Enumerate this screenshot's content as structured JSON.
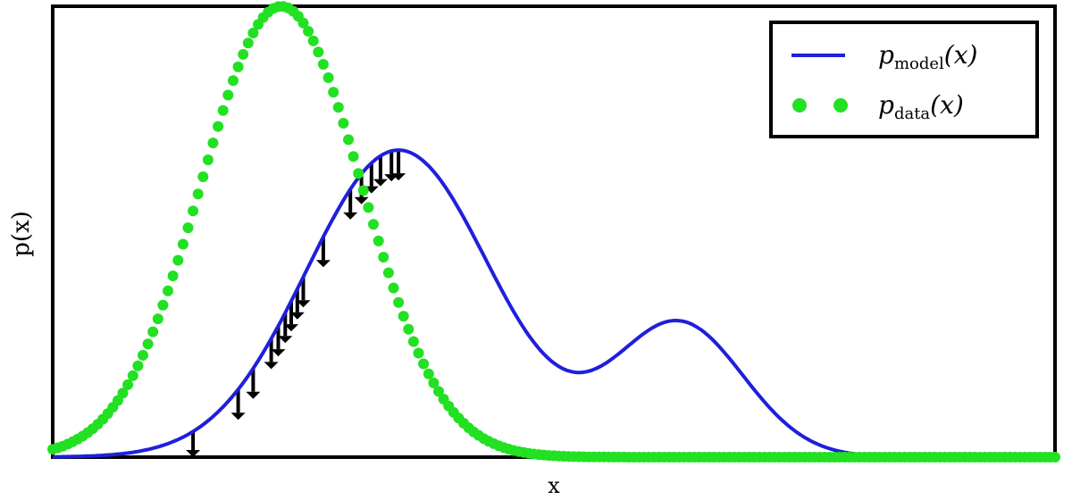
{
  "chart_data": {
    "type": "line",
    "title": "",
    "xlabel": "x",
    "ylabel": "p(x)",
    "xlim": [
      0,
      1
    ],
    "ylim": [
      0,
      1
    ],
    "grid": false,
    "legend_position": "top-right",
    "legend": [
      {
        "text": "p",
        "sub": "model",
        "suffix": "(x)",
        "style": "solid-line"
      },
      {
        "text": "p",
        "sub": "data",
        "suffix": "(x)",
        "style": "dots"
      }
    ],
    "series": [
      {
        "key": "model",
        "color": "#1f1fdc",
        "style": "line",
        "components": [
          {
            "mean": 0.345,
            "sd": 0.092,
            "weight": 0.681
          },
          {
            "mean": 0.625,
            "sd": 0.064,
            "weight": 0.296
          }
        ]
      },
      {
        "key": "data",
        "color": "#22e022",
        "style": "dots",
        "components": [
          {
            "mean": 0.228,
            "sd": 0.08,
            "weight": 1.0
          }
        ]
      }
    ],
    "arrows": {
      "color": "#000000",
      "direction": "down",
      "x": [
        0.14,
        0.185,
        0.2,
        0.218,
        0.225,
        0.232,
        0.238,
        0.244,
        0.25,
        0.27,
        0.297,
        0.308,
        0.318,
        0.327,
        0.338,
        0.345
      ]
    }
  }
}
